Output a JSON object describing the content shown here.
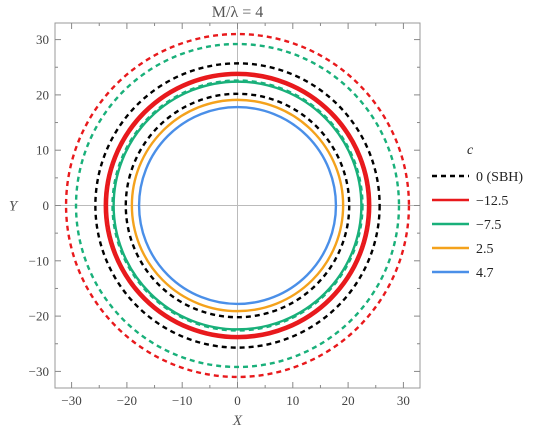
{
  "chart_data": {
    "type": "line",
    "title": "M/λ = 4",
    "xlabel": "X",
    "ylabel": "Y",
    "xlim": [
      -33,
      33
    ],
    "ylim": [
      -33,
      33
    ],
    "xticks": [
      -30,
      -20,
      -10,
      0,
      10,
      20,
      30
    ],
    "yticks": [
      -30,
      -20,
      -10,
      0,
      10,
      20,
      30
    ],
    "grid": false,
    "legend_title": "c",
    "legend_position": "right",
    "legend": [
      {
        "label": "0 (SBH)",
        "color": "#000000",
        "dashed": true
      },
      {
        "label": "−12.5",
        "color": "#e8191c",
        "dashed": false
      },
      {
        "label": "−7.5",
        "color": "#19b07a",
        "dashed": false
      },
      {
        "label": "2.5",
        "color": "#f4a21c",
        "dashed": false
      },
      {
        "label": "4.7",
        "color": "#4a8fe8",
        "dashed": false
      }
    ],
    "circles": [
      {
        "r": 31.0,
        "color": "#e8191c",
        "dashed": true
      },
      {
        "r": 29.2,
        "color": "#19b07a",
        "dashed": true
      },
      {
        "r": 25.7,
        "color": "#000000",
        "dashed": true
      },
      {
        "r": 24.0,
        "color": "#e8191c",
        "dashed": false
      },
      {
        "r": 22.6,
        "color": "#19b07a",
        "dashed": true
      },
      {
        "r": 22.4,
        "color": "#19b07a",
        "dashed": false
      },
      {
        "r": 23.6,
        "color": "#e8191c",
        "dashed": false
      },
      {
        "r": 20.2,
        "color": "#000000",
        "dashed": true
      },
      {
        "r": 19.1,
        "color": "#f4a21c",
        "dashed": false
      },
      {
        "r": 17.8,
        "color": "#4a8fe8",
        "dashed": false
      }
    ]
  }
}
